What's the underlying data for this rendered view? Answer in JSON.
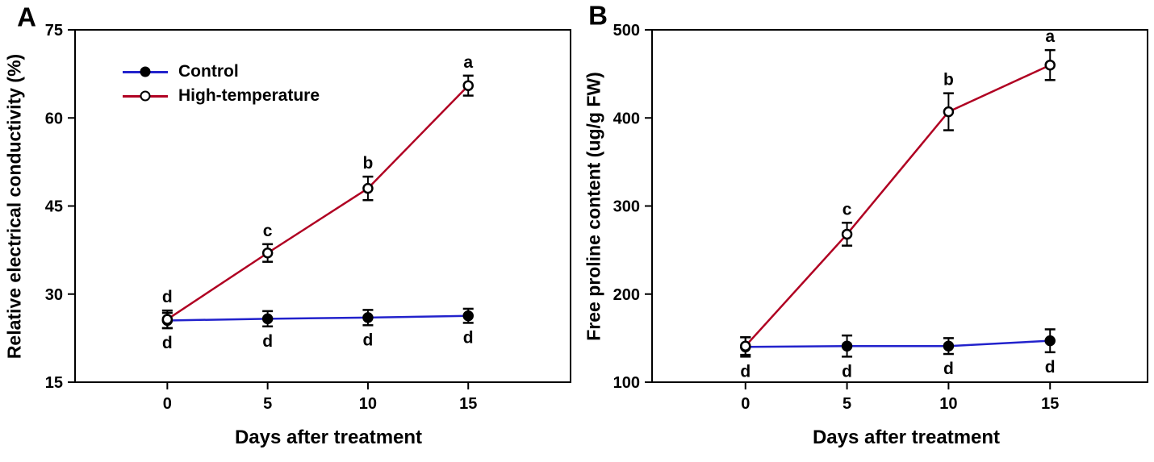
{
  "chart_data": [
    {
      "type": "line",
      "panel": "A",
      "title": "",
      "xlabel": "Days after treatment",
      "ylabel": "Relative electrical conductivity (%)",
      "x": [
        0,
        5,
        10,
        15
      ],
      "xticks": [
        0,
        5,
        10,
        15
      ],
      "yticks": [
        15,
        30,
        45,
        60,
        75
      ],
      "xlim": [
        -4.6,
        20.1
      ],
      "ylim": [
        15,
        75
      ],
      "grid": false,
      "legend_position": "upper-left-inside",
      "series": [
        {
          "name": "Control",
          "color": "#2222cc",
          "marker": "filled-circle",
          "marker_outline": "#000000",
          "values": [
            25.5,
            25.8,
            26.0,
            26.3
          ],
          "errors": [
            1.3,
            1.3,
            1.3,
            1.2
          ],
          "sig_letters": [
            "d",
            "d",
            "d",
            "d"
          ],
          "letters_position": "below"
        },
        {
          "name": "High-temperature",
          "color": "#b00022",
          "marker": "open-circle",
          "marker_outline": "#000000",
          "values": [
            25.7,
            37.0,
            48.0,
            65.5
          ],
          "errors": [
            1.5,
            1.5,
            2.0,
            1.7
          ],
          "sig_letters": [
            "d",
            "c",
            "b",
            "a"
          ],
          "letters_position": "above"
        }
      ]
    },
    {
      "type": "line",
      "panel": "B",
      "title": "",
      "xlabel": "Days after treatment",
      "ylabel": "Free proline content (ug/g FW)",
      "x": [
        0,
        5,
        10,
        15
      ],
      "xticks": [
        0,
        5,
        10,
        15
      ],
      "yticks": [
        100,
        200,
        300,
        400,
        500
      ],
      "xlim": [
        -4.6,
        19.8
      ],
      "ylim": [
        100,
        500
      ],
      "grid": false,
      "legend_position": "none",
      "series": [
        {
          "name": "Control",
          "color": "#2222cc",
          "marker": "filled-circle",
          "marker_outline": "#000000",
          "values": [
            140,
            141,
            141,
            147
          ],
          "errors": [
            11,
            12,
            9,
            13
          ],
          "sig_letters": [
            "d",
            "d",
            "d",
            "d"
          ],
          "letters_position": "below"
        },
        {
          "name": "High-temperature",
          "color": "#b00022",
          "marker": "open-circle",
          "marker_outline": "#000000",
          "values": [
            141,
            268,
            407,
            460
          ],
          "errors": [
            10,
            13,
            21,
            17
          ],
          "sig_letters": [
            null,
            "c",
            "b",
            "a"
          ],
          "letters_position": "above"
        }
      ]
    }
  ]
}
